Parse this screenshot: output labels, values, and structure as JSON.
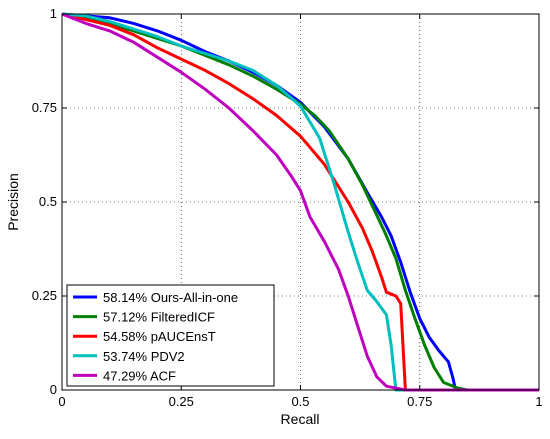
{
  "chart_data": {
    "type": "line",
    "xlabel": "Recall",
    "ylabel": "Precision",
    "xlim": [
      0,
      1
    ],
    "ylim": [
      0,
      1
    ],
    "x_ticks": [
      "0",
      "0.25",
      "0.5",
      "0.75",
      "1"
    ],
    "y_ticks": [
      "0",
      "0.25",
      "0.5",
      "0.75",
      "1"
    ],
    "grid": true,
    "legend_position": "bottom-left",
    "series": [
      {
        "name": "58.14% Ours-All-in-one",
        "color": "#0000ff",
        "points": [
          [
            0,
            1
          ],
          [
            0.05,
            0.995
          ],
          [
            0.1,
            0.99
          ],
          [
            0.15,
            0.975
          ],
          [
            0.2,
            0.955
          ],
          [
            0.25,
            0.93
          ],
          [
            0.3,
            0.9
          ],
          [
            0.35,
            0.875
          ],
          [
            0.4,
            0.845
          ],
          [
            0.45,
            0.81
          ],
          [
            0.5,
            0.765
          ],
          [
            0.55,
            0.7
          ],
          [
            0.6,
            0.615
          ],
          [
            0.64,
            0.525
          ],
          [
            0.67,
            0.46
          ],
          [
            0.69,
            0.41
          ],
          [
            0.71,
            0.34
          ],
          [
            0.73,
            0.26
          ],
          [
            0.75,
            0.19
          ],
          [
            0.77,
            0.14
          ],
          [
            0.79,
            0.105
          ],
          [
            0.81,
            0.075
          ],
          [
            0.82,
            0.03
          ],
          [
            0.825,
            0.0
          ],
          [
            1.0,
            0.0
          ]
        ]
      },
      {
        "name": "57.12% FilteredICF",
        "color": "#007f00",
        "points": [
          [
            0,
            1
          ],
          [
            0.05,
            0.99
          ],
          [
            0.1,
            0.975
          ],
          [
            0.15,
            0.955
          ],
          [
            0.2,
            0.935
          ],
          [
            0.25,
            0.915
          ],
          [
            0.3,
            0.89
          ],
          [
            0.35,
            0.865
          ],
          [
            0.4,
            0.835
          ],
          [
            0.45,
            0.8
          ],
          [
            0.5,
            0.76
          ],
          [
            0.53,
            0.73
          ],
          [
            0.56,
            0.69
          ],
          [
            0.6,
            0.615
          ],
          [
            0.63,
            0.545
          ],
          [
            0.66,
            0.465
          ],
          [
            0.68,
            0.41
          ],
          [
            0.7,
            0.35
          ],
          [
            0.72,
            0.265
          ],
          [
            0.74,
            0.19
          ],
          [
            0.76,
            0.12
          ],
          [
            0.78,
            0.06
          ],
          [
            0.8,
            0.02
          ],
          [
            0.83,
            0.005
          ],
          [
            0.85,
            0.0
          ],
          [
            1.0,
            0.0
          ]
        ]
      },
      {
        "name": "54.58% pAUCEnsT",
        "color": "#ff0000",
        "points": [
          [
            0,
            1
          ],
          [
            0.05,
            0.985
          ],
          [
            0.1,
            0.97
          ],
          [
            0.15,
            0.945
          ],
          [
            0.2,
            0.91
          ],
          [
            0.25,
            0.88
          ],
          [
            0.3,
            0.85
          ],
          [
            0.35,
            0.815
          ],
          [
            0.4,
            0.775
          ],
          [
            0.45,
            0.73
          ],
          [
            0.5,
            0.675
          ],
          [
            0.55,
            0.6
          ],
          [
            0.6,
            0.5
          ],
          [
            0.63,
            0.43
          ],
          [
            0.65,
            0.37
          ],
          [
            0.67,
            0.3
          ],
          [
            0.68,
            0.26
          ],
          [
            0.7,
            0.25
          ],
          [
            0.71,
            0.23
          ],
          [
            0.72,
            0.0
          ],
          [
            1.0,
            0.0
          ]
        ]
      },
      {
        "name": "53.74% PDV2",
        "color": "#00bfbf",
        "points": [
          [
            0,
            1
          ],
          [
            0.05,
            0.995
          ],
          [
            0.1,
            0.98
          ],
          [
            0.15,
            0.96
          ],
          [
            0.2,
            0.94
          ],
          [
            0.25,
            0.915
          ],
          [
            0.3,
            0.895
          ],
          [
            0.35,
            0.875
          ],
          [
            0.4,
            0.85
          ],
          [
            0.45,
            0.81
          ],
          [
            0.5,
            0.755
          ],
          [
            0.54,
            0.67
          ],
          [
            0.57,
            0.55
          ],
          [
            0.6,
            0.42
          ],
          [
            0.62,
            0.34
          ],
          [
            0.64,
            0.265
          ],
          [
            0.66,
            0.235
          ],
          [
            0.68,
            0.2
          ],
          [
            0.69,
            0.12
          ],
          [
            0.7,
            0.0
          ],
          [
            1.0,
            0.0
          ]
        ]
      },
      {
        "name": "47.29% ACF",
        "color": "#bf00bf",
        "points": [
          [
            0,
            1
          ],
          [
            0.05,
            0.975
          ],
          [
            0.1,
            0.955
          ],
          [
            0.15,
            0.925
          ],
          [
            0.2,
            0.885
          ],
          [
            0.25,
            0.845
          ],
          [
            0.3,
            0.8
          ],
          [
            0.35,
            0.75
          ],
          [
            0.4,
            0.69
          ],
          [
            0.45,
            0.625
          ],
          [
            0.48,
            0.57
          ],
          [
            0.5,
            0.53
          ],
          [
            0.52,
            0.46
          ],
          [
            0.55,
            0.395
          ],
          [
            0.58,
            0.32
          ],
          [
            0.6,
            0.25
          ],
          [
            0.62,
            0.17
          ],
          [
            0.64,
            0.09
          ],
          [
            0.66,
            0.035
          ],
          [
            0.68,
            0.01
          ],
          [
            0.72,
            0.0
          ],
          [
            1.0,
            0.0
          ]
        ]
      }
    ]
  }
}
